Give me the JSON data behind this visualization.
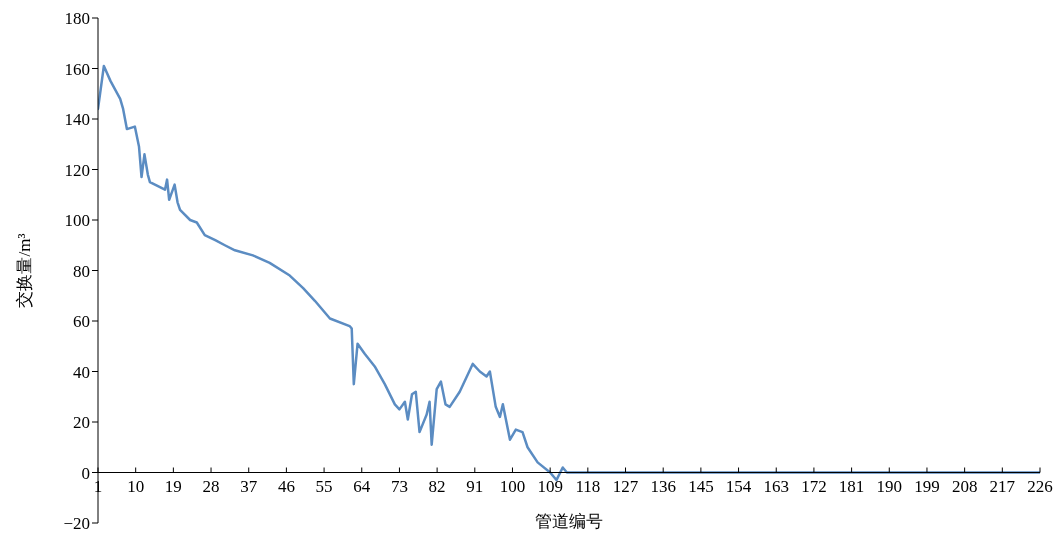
{
  "chart_data": {
    "type": "line",
    "xlabel": "管道编号",
    "ylabel": "交换量/m³",
    "x": [
      1,
      2.4,
      4,
      6.3,
      7,
      7.9,
      9.8,
      10.8,
      11.4,
      12.1,
      12.9,
      13.4,
      15.8,
      17,
      17.5,
      18,
      19.3,
      20,
      20.6,
      23,
      24.6,
      26.5,
      29,
      31.3,
      33.7,
      38,
      42,
      46.8,
      50,
      52.8,
      56.4,
      61.1,
      61.6,
      62.1,
      63,
      64.7,
      67.1,
      69.5,
      71.9,
      73,
      74.3,
      75,
      76,
      76.9,
      77.8,
      79.5,
      80.2,
      80.7,
      81.9,
      82.9,
      84,
      85,
      87.4,
      90.5,
      92.2,
      93.8,
      94.6,
      96,
      97,
      97.7,
      99.4,
      100.8,
      102.4,
      103.6,
      106,
      109,
      110.5,
      112,
      113,
      226
    ],
    "series": [
      {
        "color": "#5b8cc2",
        "values": [
          144,
          161,
          155,
          148,
          144,
          136,
          137,
          129,
          117,
          126,
          118,
          115,
          113,
          112,
          116,
          108,
          114,
          107,
          104,
          100,
          99,
          94,
          92,
          90,
          88,
          86,
          83,
          78,
          73,
          68,
          61,
          58,
          57,
          35,
          51,
          47,
          42,
          35,
          27,
          25,
          28,
          21,
          31,
          32,
          16,
          23,
          28,
          11,
          33,
          36,
          27,
          26,
          32,
          43,
          40,
          38,
          40,
          26,
          22,
          27,
          13,
          17,
          16,
          10,
          4,
          0,
          -3,
          2,
          0,
          0
        ]
      }
    ],
    "xlim": [
      1,
      226
    ],
    "xticks": [
      1,
      10,
      19,
      28,
      37,
      46,
      55,
      64,
      73,
      82,
      91,
      100,
      109,
      118,
      127,
      136,
      145,
      154,
      163,
      172,
      181,
      190,
      199,
      208,
      217,
      226
    ],
    "ylim": [
      -20,
      180
    ],
    "yticks": [
      {
        "value": -20,
        "label": "−20"
      },
      0,
      20,
      40,
      60,
      80,
      100,
      120,
      140,
      160,
      180
    ],
    "grid": false,
    "legend": false,
    "marker": "none",
    "line_style": "solid"
  }
}
